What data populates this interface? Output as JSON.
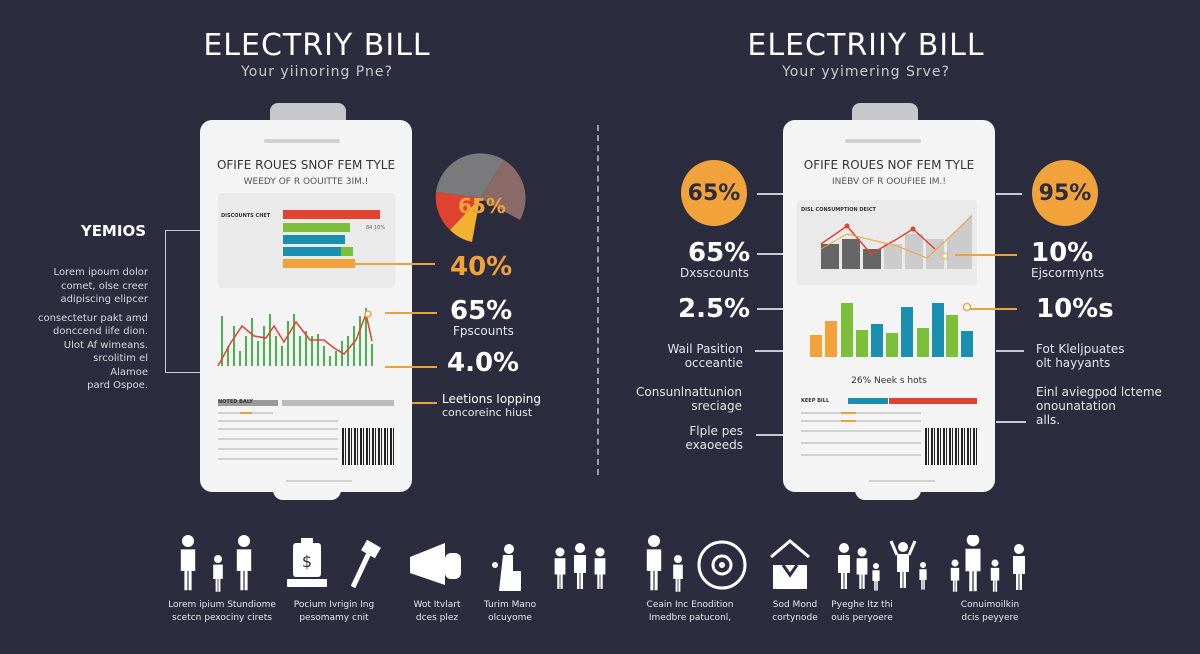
{
  "colors": {
    "background": "#2b2d3f",
    "accent_orange": "#f2a23a",
    "red": "#e0432f",
    "green": "#7cbf3a",
    "blue": "#1b8fb0",
    "gray": "#777777"
  },
  "left": {
    "title": "ELECTRIY BILL",
    "subtitle": "Your yiinoring Pne?",
    "bill": {
      "heading": "OFIFE ROUES SNOF FEM TYLE",
      "subheading": "WEEDY OF R OOUITTE 3IM.!",
      "bar_section_label": "DISCOUNTS CHET",
      "bar_note": "84 10%",
      "footer_label": "NOTED BALY"
    },
    "side_heading": "YEMIOS",
    "side_paragraph": [
      "Lorem ipoum dolor",
      "comet, olse creer",
      "adipiscing elipcer",
      "consectetur pakt amd",
      "donccend iife dion.",
      "Ulot Af wimeans.",
      "srcolitim el",
      "Alamoe",
      "pard Ospoe."
    ],
    "pie_label": "65%",
    "stats": [
      {
        "value": "40%",
        "color": "#f2a23a"
      },
      {
        "value": "65%",
        "label": "Fpscounts"
      },
      {
        "value": "4.0%"
      }
    ],
    "note": [
      "Leetions Iopping",
      "concoreinc hiust"
    ]
  },
  "right": {
    "title": "ELECTRIIY BILL",
    "subtitle": "Your yyimering Srve?",
    "bill": {
      "heading": "OFIFE ROUES NOF FEM TYLE",
      "subheading": "INEBV OF R OOUFIEE IM.!",
      "chart_label": "DISL CONSUMPTION DEICT",
      "caption": "26% Neek s hots",
      "footer_label": "KEEP BILL"
    },
    "left_stats": [
      {
        "value": "65%",
        "circle": true
      },
      {
        "value": "65%",
        "label": "Dxsscounts"
      },
      {
        "value": "2.5%"
      },
      {
        "lines": [
          "Wail Pasition",
          "occeantie"
        ]
      },
      {
        "lines": [
          "Consunlnattunion",
          "sreciage"
        ]
      },
      {
        "lines": [
          "Flple pes",
          "exaoeeds"
        ]
      }
    ],
    "right_stats": [
      {
        "value": "95%",
        "circle": true
      },
      {
        "value": "10%",
        "label": "Ejscormynts"
      },
      {
        "value": "10%s"
      },
      {
        "lines": [
          "Fot Kleljpuates",
          "olt hayyants"
        ]
      },
      {
        "lines": [
          "Einl aviegpod lcteme",
          "onounatation",
          "alls."
        ]
      }
    ]
  },
  "icons": [
    {
      "name": "family-icon",
      "caption": [
        "Lorem ipium Stundiome",
        "scetcn pexociny cirets"
      ]
    },
    {
      "name": "money-bag-icon",
      "caption": [
        "Pocium Ivrigin Ing",
        "pesomamy cnit"
      ]
    },
    {
      "name": "hammer-icon"
    },
    {
      "name": "megaphone-icon",
      "caption": [
        "Wot Itvlart",
        "dces plez"
      ]
    },
    {
      "name": "seated-person-icon",
      "caption": [
        "Turim Mano",
        "olcuyome"
      ]
    },
    {
      "name": "group-icon"
    },
    {
      "name": "parent-child-icon",
      "caption": [
        "Ceain Inc Enodition",
        "Imedbre patuconl,"
      ]
    },
    {
      "name": "target-icon"
    },
    {
      "name": "house-icon",
      "caption": [
        "Sod Mond",
        "cortynode"
      ]
    },
    {
      "name": "family-small-icon",
      "caption": [
        "Pyeghe Itz thi",
        "ouis peryoere"
      ]
    },
    {
      "name": "person-arms-up-icon"
    },
    {
      "name": "big-family-icon",
      "caption": [
        "Conuimoilkin",
        "dcis peyyere"
      ]
    }
  ]
}
